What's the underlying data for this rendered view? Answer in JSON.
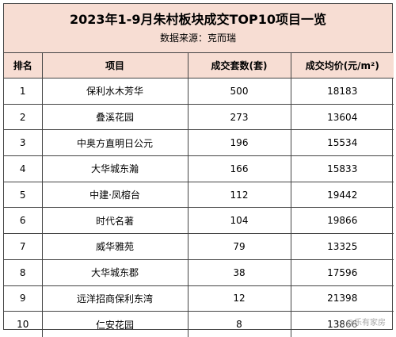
{
  "title": "2023年1-9月朱村板块成交TOP10项目一览",
  "source": "数据来源：克而瑞",
  "columns": {
    "rank": "排名",
    "name": "项目",
    "sets": "成交套数(套)",
    "price": "成交均价(元/m²)"
  },
  "rows": [
    {
      "rank": "1",
      "name": "保利水木芳华",
      "sets": "500",
      "price": "18183"
    },
    {
      "rank": "2",
      "name": "叠溪花园",
      "sets": "273",
      "price": "13604"
    },
    {
      "rank": "3",
      "name": "中奥方直明日公元",
      "sets": "196",
      "price": "15534"
    },
    {
      "rank": "4",
      "name": "大华城东瀚",
      "sets": "166",
      "price": "15833"
    },
    {
      "rank": "5",
      "name": "中建·凤榕台",
      "sets": "112",
      "price": "19442"
    },
    {
      "rank": "6",
      "name": "时代名著",
      "sets": "104",
      "price": "19866"
    },
    {
      "rank": "7",
      "name": "威华雅苑",
      "sets": "79",
      "price": "13325"
    },
    {
      "rank": "8",
      "name": "大华城东郡",
      "sets": "38",
      "price": "17596"
    },
    {
      "rank": "9",
      "name": "远洋招商保利东湾",
      "sets": "12",
      "price": "21398"
    },
    {
      "rank": "10",
      "name": "仁安花园",
      "sets": "8",
      "price": "13866"
    }
  ],
  "watermark": "@乐有家房"
}
